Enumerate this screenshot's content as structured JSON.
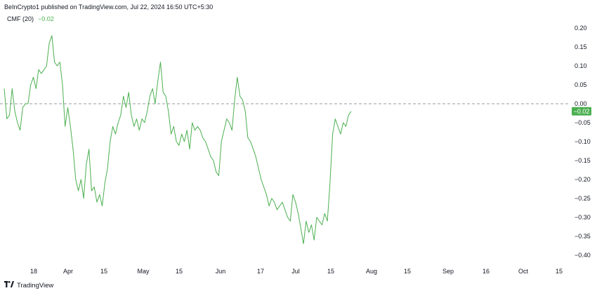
{
  "header": {
    "text": "BeInCrypto1 published on TradingView.com, Jul 22, 2024 16:50 UTC+5:30"
  },
  "legend": {
    "name": "CMF (20)",
    "value": "−0.02"
  },
  "footer": {
    "logo_icon": "tradingview-logo-icon",
    "brand": "TradingView"
  },
  "colors": {
    "line": "#4caf50",
    "badge": "#4caf50",
    "zero_line": "#9598a1",
    "text": "#131722"
  },
  "chart_data": {
    "type": "line",
    "title": "",
    "xlabel": "",
    "ylabel": "",
    "ylim": [
      -0.43,
      0.22
    ],
    "x_tick_labels": [
      "18",
      "Apr",
      "15",
      "May",
      "15",
      "Jun",
      "17",
      "Jul",
      "15",
      "Aug",
      "15",
      "Sep",
      "16",
      "Oct",
      "15"
    ],
    "y_tick_labels": [
      "0.20",
      "0.15",
      "0.10",
      "0.05",
      "0.00",
      "−0.05",
      "−0.10",
      "−0.15",
      "−0.20",
      "−0.25",
      "−0.30",
      "−0.35",
      "−0.40"
    ],
    "y_ticks": [
      0.2,
      0.15,
      0.1,
      0.05,
      0.0,
      -0.05,
      -0.1,
      -0.15,
      -0.2,
      -0.25,
      -0.3,
      -0.35,
      -0.4
    ],
    "reference_line": 0.0,
    "last_value_label": "−0.02",
    "last_value": -0.02,
    "series": [
      {
        "values": [
          0.04,
          -0.04,
          -0.03,
          0.04,
          -0.02,
          -0.05,
          -0.07,
          -0.01,
          0.0,
          0.0,
          0.05,
          0.07,
          0.04,
          0.09,
          0.08,
          0.09,
          0.1,
          0.16,
          0.18,
          0.11,
          0.1,
          0.11,
          0.05,
          -0.06,
          -0.01,
          -0.06,
          -0.12,
          -0.2,
          -0.23,
          -0.2,
          -0.25,
          -0.16,
          -0.12,
          -0.23,
          -0.22,
          -0.26,
          -0.24,
          -0.27,
          -0.21,
          -0.17,
          -0.1,
          -0.06,
          -0.08,
          -0.05,
          -0.03,
          0.02,
          -0.01,
          0.03,
          -0.03,
          -0.06,
          -0.04,
          -0.07,
          -0.04,
          -0.05,
          -0.02,
          0.02,
          0.04,
          0.0,
          0.06,
          0.11,
          0.03,
          0.02,
          -0.02,
          -0.08,
          -0.06,
          -0.1,
          -0.11,
          -0.08,
          -0.1,
          -0.07,
          -0.12,
          -0.05,
          -0.07,
          -0.06,
          -0.07,
          -0.09,
          -0.1,
          -0.12,
          -0.14,
          -0.15,
          -0.18,
          -0.19,
          -0.1,
          -0.07,
          -0.04,
          -0.05,
          -0.07,
          0.01,
          0.07,
          0.02,
          0.01,
          -0.02,
          -0.09,
          -0.1,
          -0.12,
          -0.14,
          -0.17,
          -0.2,
          -0.22,
          -0.24,
          -0.27,
          -0.25,
          -0.26,
          -0.28,
          -0.27,
          -0.26,
          -0.28,
          -0.3,
          -0.31,
          -0.24,
          -0.26,
          -0.29,
          -0.33,
          -0.37,
          -0.31,
          -0.34,
          -0.32,
          -0.36,
          -0.3,
          -0.31,
          -0.32,
          -0.29,
          -0.31,
          -0.21,
          -0.08,
          -0.04,
          -0.06,
          -0.08,
          -0.05,
          -0.06,
          -0.03,
          -0.02
        ]
      }
    ]
  }
}
